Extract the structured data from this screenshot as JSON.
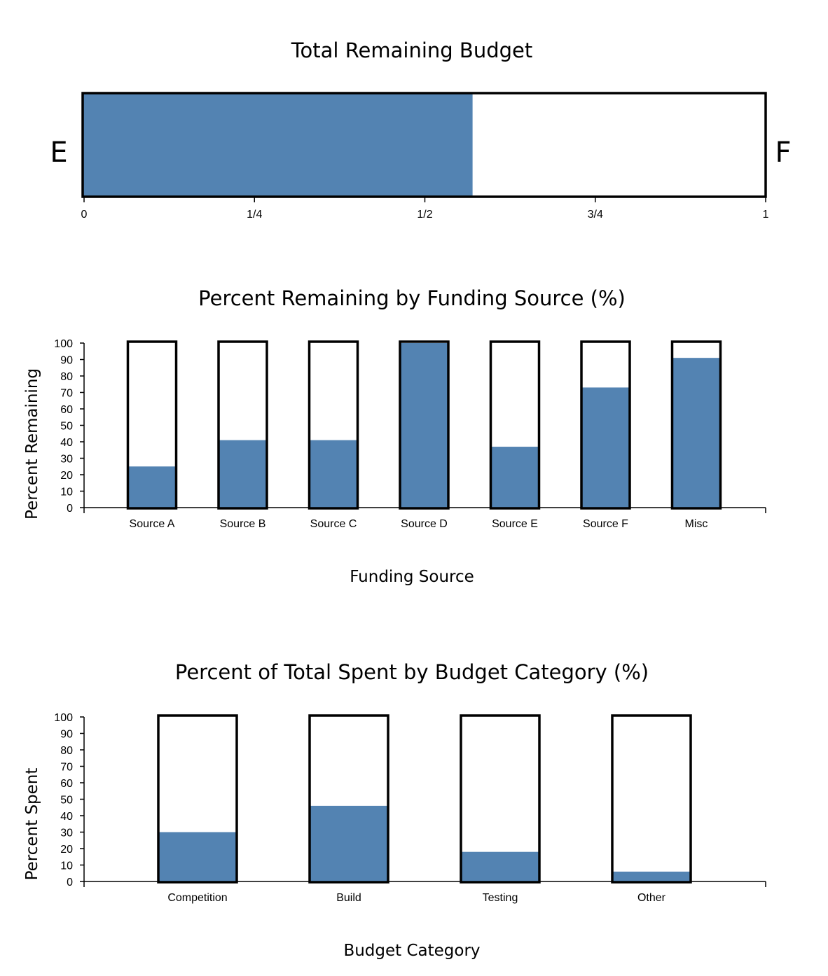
{
  "chart_data": [
    {
      "type": "gauge",
      "title": "Total Remaining Budget",
      "left_label": "E",
      "right_label": "F",
      "value": 0.57,
      "range": [
        0,
        1
      ],
      "ticks": [
        {
          "value": 0,
          "label": "0"
        },
        {
          "value": 0.25,
          "label": "1/4"
        },
        {
          "value": 0.5,
          "label": "1/2"
        },
        {
          "value": 0.75,
          "label": "3/4"
        },
        {
          "value": 1,
          "label": "1"
        }
      ],
      "fill_color": "#5383b2"
    },
    {
      "type": "bar",
      "title": "Percent Remaining by Funding Source (%)",
      "xlabel": "Funding Source",
      "ylabel": "Percent Remaining",
      "categories": [
        "Source A",
        "Source B",
        "Source C",
        "Source D",
        "Source E",
        "Source F",
        "Misc"
      ],
      "values": [
        25,
        41,
        41,
        100,
        37,
        73,
        91
      ],
      "ylim": [
        0,
        100
      ],
      "yticks": [
        "0",
        "10",
        "20",
        "30",
        "40",
        "50",
        "60",
        "70",
        "80",
        "90",
        "100"
      ],
      "fill_color": "#5383b2"
    },
    {
      "type": "bar",
      "title": "Percent of Total Spent by Budget Category (%)",
      "xlabel": "Budget Category",
      "ylabel": "Percent Spent",
      "categories": [
        "Competition",
        "Build",
        "Testing",
        "Other"
      ],
      "values": [
        30,
        46,
        18,
        6
      ],
      "ylim": [
        0,
        100
      ],
      "yticks": [
        "0",
        "10",
        "20",
        "30",
        "40",
        "50",
        "60",
        "70",
        "80",
        "90",
        "100"
      ],
      "fill_color": "#5383b2"
    }
  ]
}
